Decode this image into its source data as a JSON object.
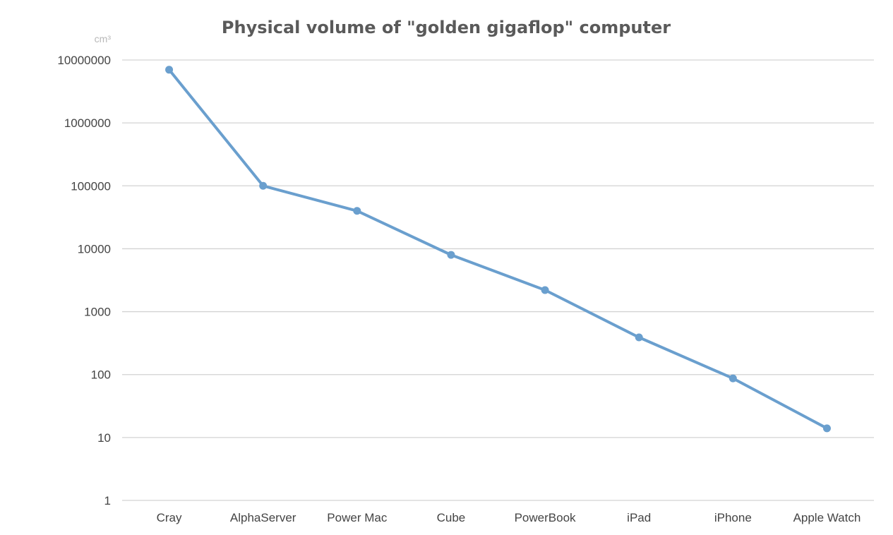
{
  "chart_data": {
    "type": "line",
    "title": "Physical volume of \"golden gigaflop\" computer",
    "unit_label": "cm³",
    "yscale": "log",
    "ylim": [
      1,
      10000000
    ],
    "yticks": [
      "1",
      "10",
      "100",
      "1000",
      "10000",
      "100000",
      "1000000",
      "10000000"
    ],
    "grid": true,
    "categories": [
      "Cray",
      "AlphaServer",
      "Power Mac",
      "Cube",
      "PowerBook",
      "iPad",
      "iPhone",
      "Apple Watch"
    ],
    "series": [
      {
        "values": [
          7000000,
          100000,
          40000,
          8000,
          2200,
          390,
          87,
          14
        ],
        "color": "#6a9fce"
      }
    ]
  }
}
